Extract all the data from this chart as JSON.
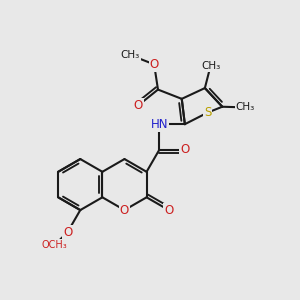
{
  "bg": "#e8e8e8",
  "bond_color": "#1a1a1a",
  "lw": 1.5,
  "S_color": "#b8a000",
  "N_color": "#2020cc",
  "O_color": "#cc2020",
  "C_color": "#1a1a1a",
  "xlim": [
    -3.0,
    2.8
  ],
  "ylim": [
    -2.6,
    2.8
  ]
}
